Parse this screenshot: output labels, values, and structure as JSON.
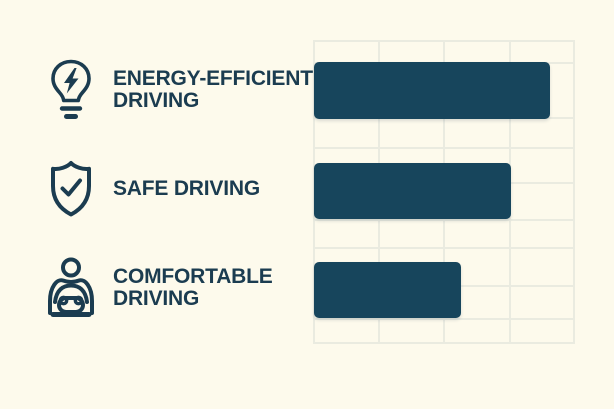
{
  "colors": {
    "ink": "#1b3c50",
    "bar": "#17455c",
    "grid_line": "#eaebe0",
    "background": "#fdfaec"
  },
  "legend": {
    "items": [
      {
        "icon": "lightbulb-bolt-icon",
        "label": "ENERGY-EFFICIENT\nDRIVING"
      },
      {
        "icon": "shield-check-icon",
        "label": "SAFE DRIVING"
      },
      {
        "icon": "driver-icon",
        "label": "COMFORTABLE\nDRIVING"
      }
    ]
  },
  "chart_data": {
    "type": "bar",
    "orientation": "horizontal",
    "title": "",
    "categories": [
      "ENERGY-EFFICIENT DRIVING",
      "SAFE DRIVING",
      "COMFORTABLE DRIVING"
    ],
    "values": [
      90,
      75,
      56
    ],
    "value_unit": "percent-of-axis-width",
    "xlim": [
      0,
      100
    ],
    "x_gridlines": [
      0,
      25,
      50,
      75,
      100
    ],
    "grid": true,
    "legend_position": "left",
    "bar_color": "#17455c",
    "layout": {
      "y_gridlines_pct": [
        0,
        7.6,
        25.7,
        35.6,
        47.2,
        59.1,
        68.3,
        80.9,
        91.7,
        100
      ],
      "bar_rows_pct": [
        {
          "top": 7.3,
          "height": 18.8
        },
        {
          "top": 40.3,
          "height": 18.5
        },
        {
          "top": 72.9,
          "height": 18.5
        }
      ]
    }
  }
}
